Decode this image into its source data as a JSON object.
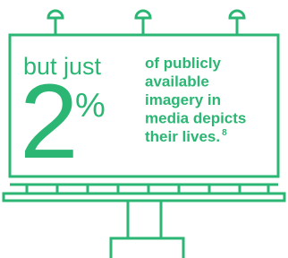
{
  "billboard": {
    "lead": "but just",
    "number": "2",
    "unit": "%",
    "statement_lines": [
      "of publicly",
      "available",
      "imagery in",
      "media depicts",
      "their lives."
    ],
    "footnote": "8"
  }
}
